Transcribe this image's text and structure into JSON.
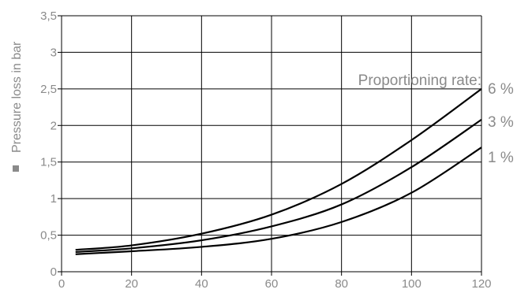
{
  "chart_data": {
    "type": "line",
    "ylabel": "Pressure loss in bar",
    "annotation": "Proportioning rate:",
    "xlim": [
      0,
      120
    ],
    "ylim": [
      0,
      3.5
    ],
    "x_ticks": [
      "0",
      "20",
      "40",
      "60",
      "80",
      "100",
      "120"
    ],
    "y_ticks": [
      "0",
      "0,5",
      "1",
      "1,5",
      "2",
      "2,5",
      "3",
      "3,5"
    ],
    "grid": true,
    "series": [
      {
        "name": "6 %",
        "x": [
          4,
          20,
          40,
          60,
          80,
          100,
          120
        ],
        "y": [
          0.3,
          0.36,
          0.52,
          0.78,
          1.2,
          1.8,
          2.5
        ]
      },
      {
        "name": "3 %",
        "x": [
          4,
          20,
          40,
          60,
          80,
          100,
          120
        ],
        "y": [
          0.27,
          0.32,
          0.43,
          0.62,
          0.92,
          1.43,
          2.08
        ]
      },
      {
        "name": "1 %",
        "x": [
          4,
          20,
          40,
          60,
          80,
          100,
          120
        ],
        "y": [
          0.24,
          0.28,
          0.34,
          0.45,
          0.68,
          1.08,
          1.7
        ]
      }
    ]
  }
}
